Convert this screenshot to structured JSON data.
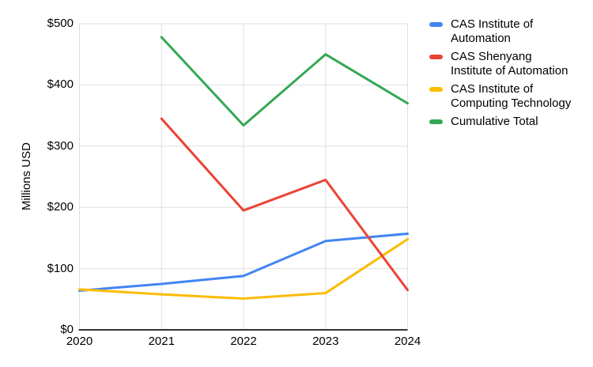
{
  "chart_data": {
    "type": "line",
    "title": "",
    "xlabel": "",
    "ylabel": "Millions USD",
    "categories": [
      "2020",
      "2021",
      "2022",
      "2023",
      "2024"
    ],
    "y_tick_values": [
      0,
      100,
      200,
      300,
      400,
      500
    ],
    "y_tick_labels": [
      "$0",
      "$100",
      "$200",
      "$300",
      "$400",
      "$500"
    ],
    "ylim": [
      0,
      500
    ],
    "grid": true,
    "legend_position": "right",
    "draw_order": [
      0,
      2,
      1,
      3
    ],
    "series": [
      {
        "name": "CAS Institute of Automation",
        "legend_lines": [
          "CAS Institute of",
          "Automation"
        ],
        "color": "#4285F4",
        "values": [
          64,
          75,
          88,
          145,
          157
        ]
      },
      {
        "name": "CAS Shenyang Institute of Automation",
        "legend_lines": [
          "CAS Shenyang",
          "Institute of Automation"
        ],
        "color": "#EA4335",
        "values": [
          null,
          345,
          195,
          245,
          65
        ]
      },
      {
        "name": "CAS Institute of Computing Technology",
        "legend_lines": [
          "CAS Institute of",
          "Computing Technology"
        ],
        "color": "#FBBC04",
        "values": [
          66,
          58,
          51,
          60,
          148
        ]
      },
      {
        "name": "Cumulative Total",
        "legend_lines": [
          "Cumulative Total"
        ],
        "color": "#34A853",
        "values": [
          null,
          478,
          334,
          450,
          370
        ]
      }
    ]
  },
  "colors": {
    "background": "#FFFFFF",
    "grid": "#E0E0E0",
    "axis": "#333333",
    "text": "#000000"
  }
}
